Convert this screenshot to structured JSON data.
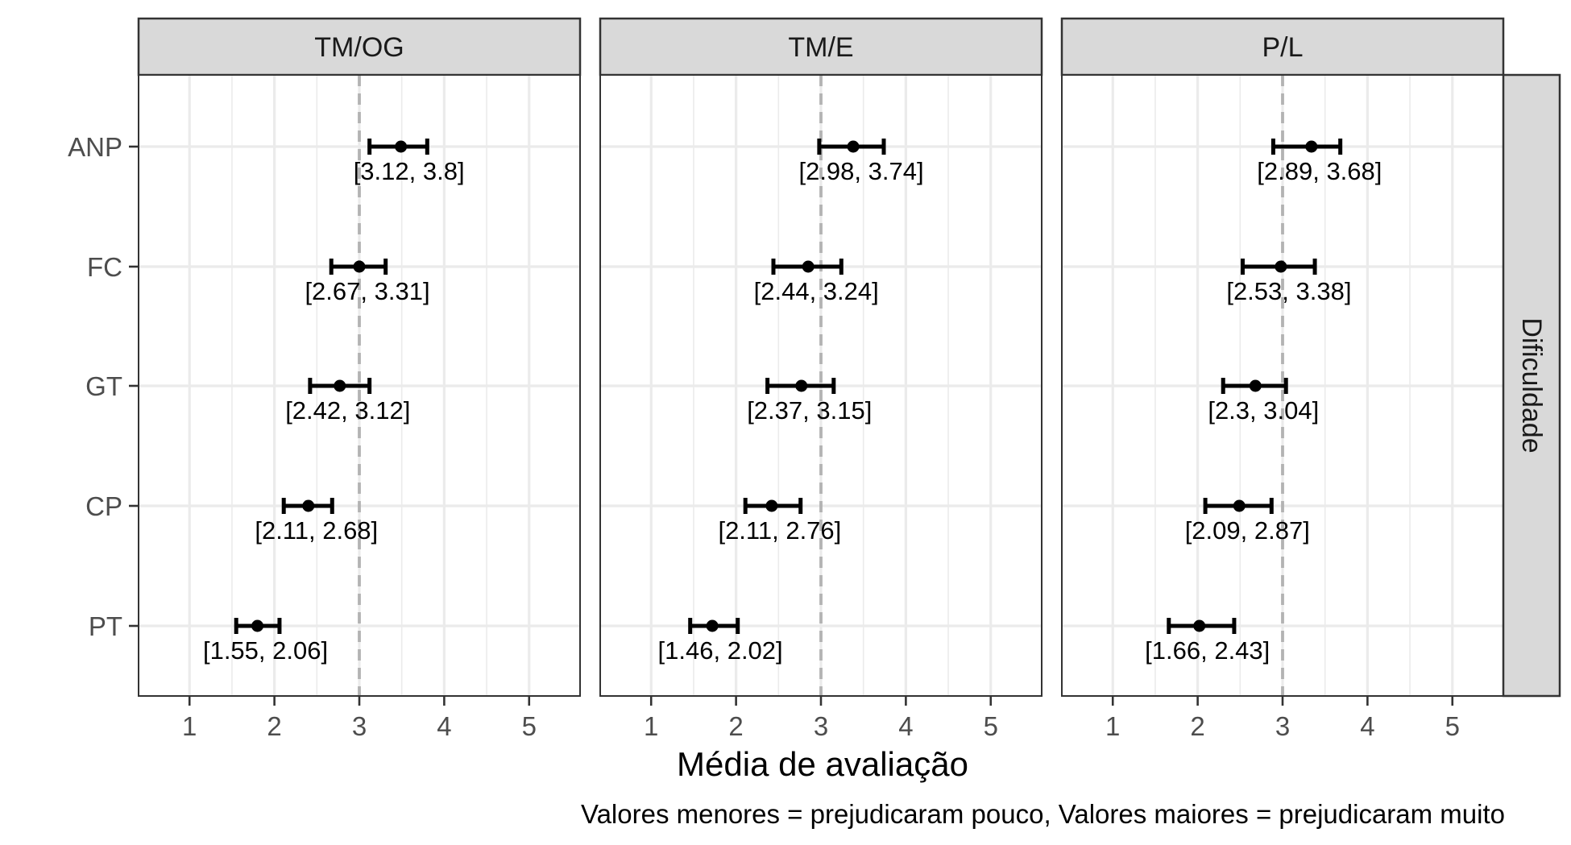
{
  "chart_data": {
    "type": "errorbar",
    "xlabel": "Média de avaliação",
    "caption": "Valores menores = prejudicaram pouco, Valores maiores = prejudicaram muito",
    "row_strip": "Dificuldade",
    "categories": [
      "ANP",
      "FC",
      "GT",
      "CP",
      "PT"
    ],
    "x_ticks": [
      1,
      2,
      3,
      4,
      5
    ],
    "xlim": [
      0.4,
      5.6
    ],
    "reference_line": 3,
    "grid": true,
    "panels": [
      {
        "name": "TM/OG",
        "series": [
          {
            "category": "ANP",
            "mean": 3.49,
            "low": 3.12,
            "high": 3.8,
            "label": "[3.12, 3.8]"
          },
          {
            "category": "FC",
            "mean": 3.0,
            "low": 2.67,
            "high": 3.31,
            "label": "[2.67, 3.31]"
          },
          {
            "category": "GT",
            "mean": 2.77,
            "low": 2.42,
            "high": 3.12,
            "label": "[2.42, 3.12]"
          },
          {
            "category": "CP",
            "mean": 2.4,
            "low": 2.11,
            "high": 2.68,
            "label": "[2.11, 2.68]"
          },
          {
            "category": "PT",
            "mean": 1.8,
            "low": 1.55,
            "high": 2.06,
            "label": "[1.55, 2.06]"
          }
        ]
      },
      {
        "name": "TM/E",
        "series": [
          {
            "category": "ANP",
            "mean": 3.38,
            "low": 2.98,
            "high": 3.74,
            "label": "[2.98, 3.74]"
          },
          {
            "category": "FC",
            "mean": 2.85,
            "low": 2.44,
            "high": 3.24,
            "label": "[2.44, 3.24]"
          },
          {
            "category": "GT",
            "mean": 2.77,
            "low": 2.37,
            "high": 3.15,
            "label": "[2.37, 3.15]"
          },
          {
            "category": "CP",
            "mean": 2.42,
            "low": 2.11,
            "high": 2.76,
            "label": "[2.11, 2.76]"
          },
          {
            "category": "PT",
            "mean": 1.72,
            "low": 1.46,
            "high": 2.02,
            "label": "[1.46, 2.02]"
          }
        ]
      },
      {
        "name": "P/L",
        "series": [
          {
            "category": "ANP",
            "mean": 3.34,
            "low": 2.89,
            "high": 3.68,
            "label": "[2.89, 3.68]"
          },
          {
            "category": "FC",
            "mean": 2.98,
            "low": 2.53,
            "high": 3.38,
            "label": "[2.53, 3.38]"
          },
          {
            "category": "GT",
            "mean": 2.68,
            "low": 2.3,
            "high": 3.04,
            "label": "[2.3, 3.04]"
          },
          {
            "category": "CP",
            "mean": 2.49,
            "low": 2.09,
            "high": 2.87,
            "label": "[2.09, 2.87]"
          },
          {
            "category": "PT",
            "mean": 2.02,
            "low": 1.66,
            "high": 2.43,
            "label": "[1.66, 2.43]"
          }
        ]
      }
    ]
  }
}
